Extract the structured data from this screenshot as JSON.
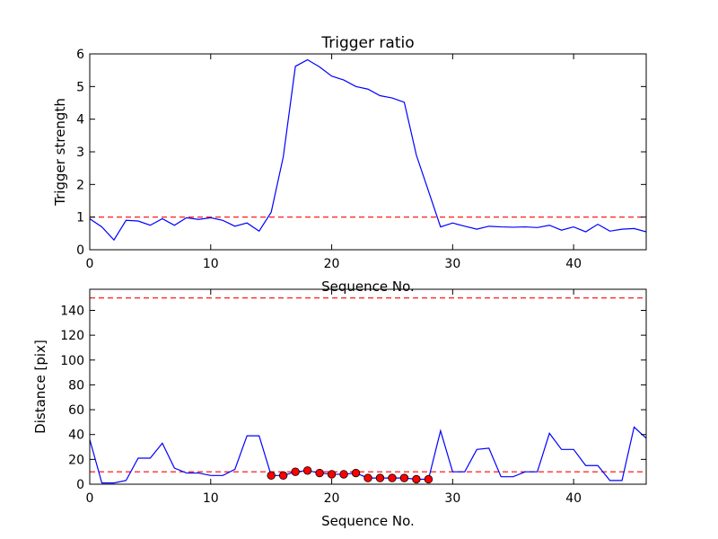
{
  "colors": {
    "line": "#0000ff",
    "threshold": "#ff0000",
    "marker_fill": "#ff0000",
    "marker_edge": "#000000",
    "frame": "#000000",
    "background": "#ffffff"
  },
  "chart_data": [
    {
      "type": "line",
      "title": "Trigger ratio",
      "xlabel": "Sequence No.",
      "ylabel": "Trigger strength",
      "xlim": [
        0,
        46
      ],
      "ylim": [
        0,
        6
      ],
      "xticks": [
        0,
        10,
        20,
        30,
        40
      ],
      "yticks": [
        0,
        1,
        2,
        3,
        4,
        5,
        6
      ],
      "grid": false,
      "series": [
        {
          "x": [
            0,
            1,
            2,
            3,
            4,
            5,
            6,
            7,
            8,
            9,
            10,
            11,
            12,
            13,
            14,
            15,
            16,
            17,
            18,
            19,
            20,
            21,
            22,
            23,
            24,
            25,
            26,
            27,
            28,
            29,
            30,
            31,
            32,
            33,
            34,
            35,
            36,
            37,
            38,
            39,
            40,
            41,
            42,
            43,
            44,
            45,
            46
          ],
          "values": [
            0.95,
            0.7,
            0.3,
            0.9,
            0.88,
            0.75,
            0.95,
            0.75,
            0.98,
            0.93,
            0.98,
            0.9,
            0.72,
            0.82,
            0.57,
            1.15,
            2.85,
            5.62,
            5.82,
            5.6,
            5.32,
            5.2,
            5.0,
            4.92,
            4.72,
            4.65,
            4.52,
            2.9,
            1.8,
            0.7,
            0.82,
            0.72,
            0.63,
            0.72,
            0.7,
            0.69,
            0.7,
            0.68,
            0.75,
            0.6,
            0.7,
            0.55,
            0.78,
            0.57,
            0.63,
            0.65,
            0.55
          ]
        }
      ],
      "reference_lines": [
        {
          "y": 1,
          "style": "dashed"
        }
      ]
    },
    {
      "type": "line",
      "title": "",
      "xlabel": "Sequence No.",
      "ylabel": "Distance [pix]",
      "xlim": [
        0,
        46
      ],
      "ylim": [
        0,
        157
      ],
      "xticks": [
        0,
        10,
        20,
        30,
        40
      ],
      "yticks": [
        0,
        20,
        40,
        60,
        80,
        100,
        120,
        140
      ],
      "grid": false,
      "series": [
        {
          "x": [
            0,
            1,
            2,
            3,
            4,
            5,
            6,
            7,
            8,
            9,
            10,
            11,
            12,
            13,
            14,
            15,
            16,
            17,
            18,
            19,
            20,
            21,
            22,
            23,
            24,
            25,
            26,
            27,
            28,
            29,
            30,
            31,
            32,
            33,
            34,
            35,
            36,
            37,
            38,
            39,
            40,
            41,
            42,
            43,
            44,
            45,
            46
          ],
          "values": [
            36,
            1,
            1,
            3,
            21,
            21,
            33,
            13,
            9,
            9,
            7,
            7,
            12,
            39,
            39,
            7,
            7,
            10,
            11,
            9,
            8,
            8,
            9,
            5,
            5,
            5,
            5,
            4,
            4,
            43,
            10,
            10,
            28,
            29,
            6,
            6,
            10,
            10,
            41,
            28,
            28,
            15,
            15,
            3,
            3,
            46,
            37
          ]
        }
      ],
      "markers": {
        "x": [
          15,
          16,
          17,
          18,
          19,
          20,
          21,
          22,
          23,
          24,
          25,
          26,
          27,
          28
        ],
        "values": [
          7,
          7,
          10,
          11,
          9,
          8,
          8,
          9,
          5,
          5,
          5,
          5,
          4,
          4
        ]
      },
      "reference_lines": [
        {
          "y": 10,
          "style": "dashed"
        },
        {
          "y": 150,
          "style": "dashed"
        }
      ]
    }
  ]
}
